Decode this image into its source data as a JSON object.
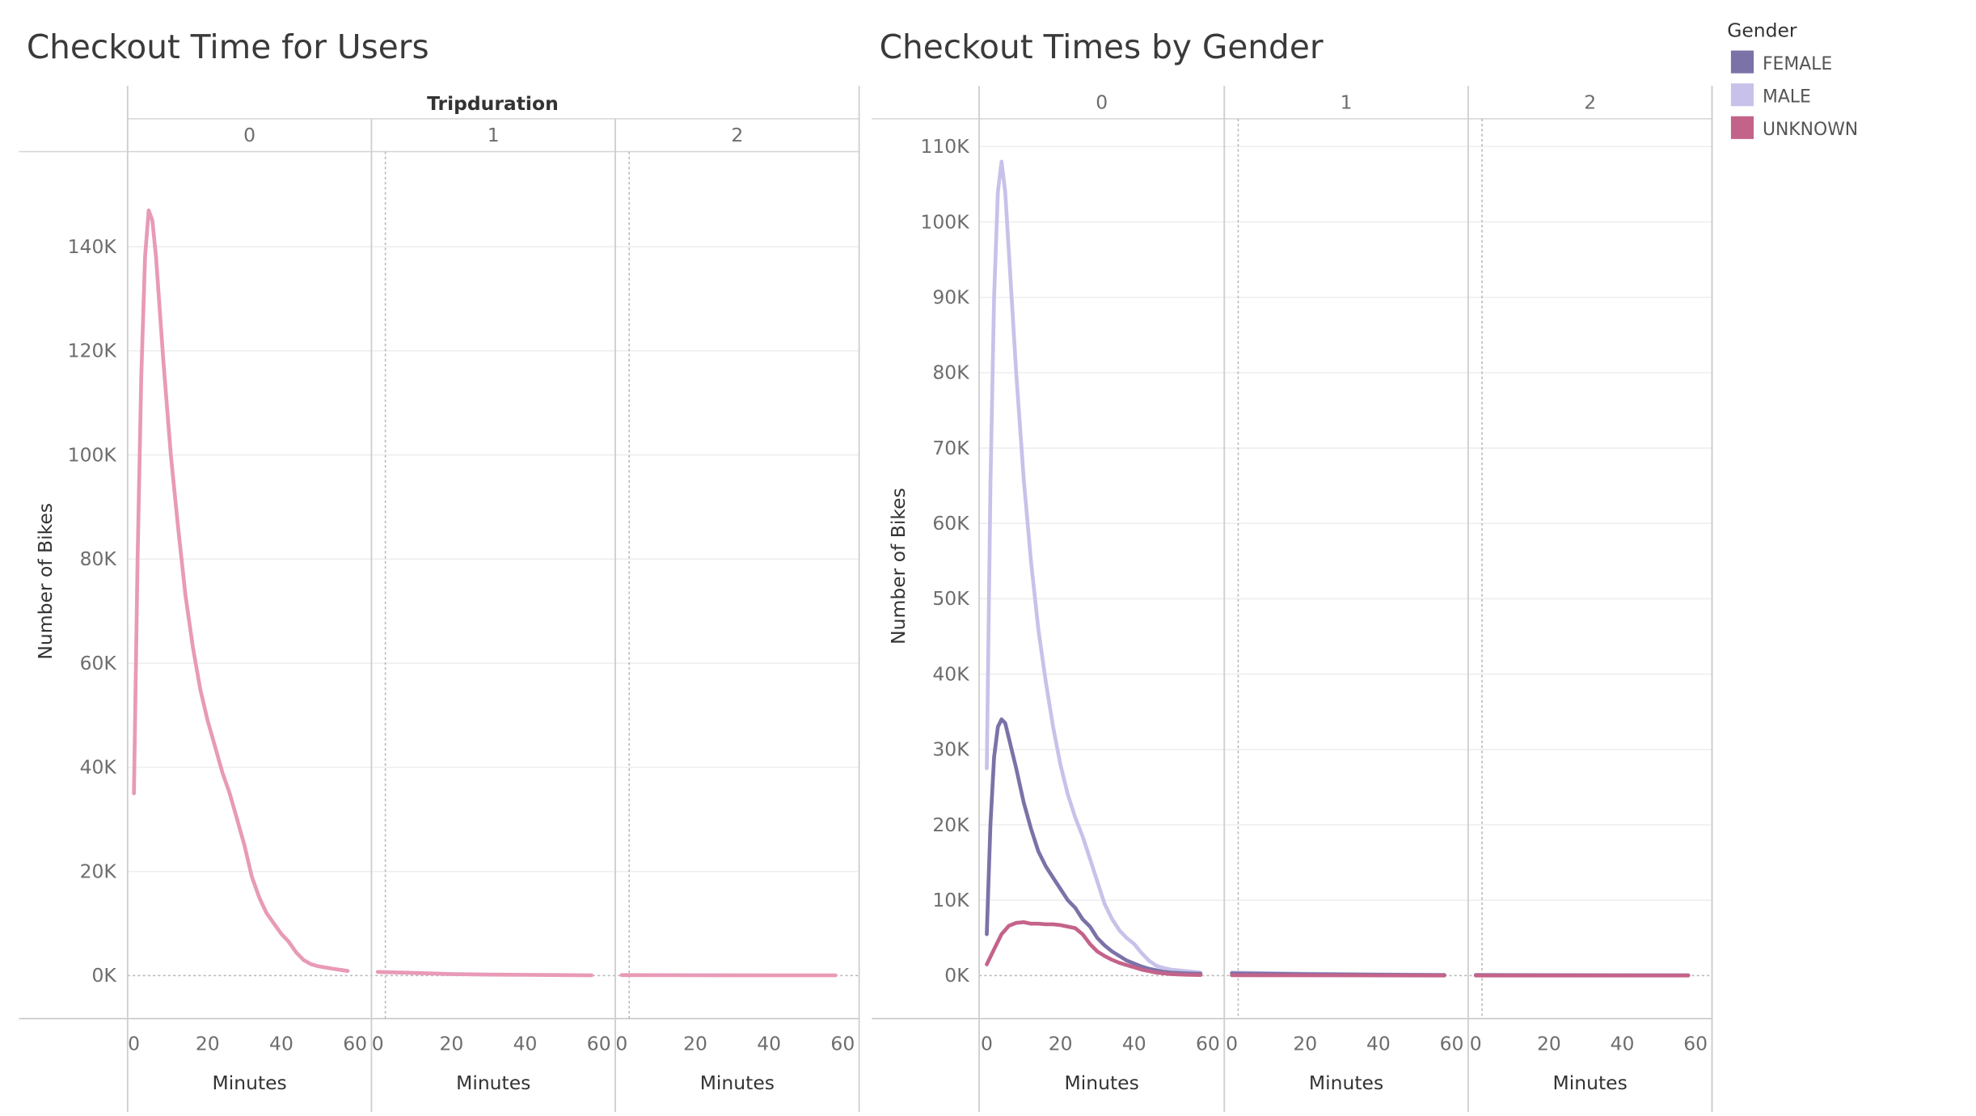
{
  "chart_data": [
    {
      "type": "line",
      "title": "Checkout Time for Users",
      "column_header": "Tripduration",
      "panels": [
        "0",
        "1",
        "2"
      ],
      "xlabel": "Minutes",
      "ylabel": "Number of Bikes",
      "xlim": [
        0,
        60
      ],
      "x_ticks": [
        "0",
        "20",
        "40",
        "60"
      ],
      "ylim": [
        0,
        150000
      ],
      "y_ticks": [
        {
          "value": 0,
          "label": "0K"
        },
        {
          "value": 20000,
          "label": "20K"
        },
        {
          "value": 40000,
          "label": "40K"
        },
        {
          "value": 60000,
          "label": "60K"
        },
        {
          "value": 80000,
          "label": "80K"
        },
        {
          "value": 100000,
          "label": "100K"
        },
        {
          "value": 120000,
          "label": "120K"
        },
        {
          "value": 140000,
          "label": "140K"
        }
      ],
      "grid": true,
      "series": [
        {
          "color": "#e89ab7",
          "panel_values": [
            [
              [
                0,
                35000
              ],
              [
                1,
                80000
              ],
              [
                2,
                115000
              ],
              [
                3,
                138000
              ],
              [
                4,
                147000
              ],
              [
                5,
                145000
              ],
              [
                6,
                138000
              ],
              [
                8,
                118000
              ],
              [
                10,
                100000
              ],
              [
                12,
                86000
              ],
              [
                14,
                73000
              ],
              [
                16,
                63000
              ],
              [
                18,
                55000
              ],
              [
                20,
                49000
              ],
              [
                22,
                44000
              ],
              [
                24,
                39000
              ],
              [
                26,
                35000
              ],
              [
                28,
                30000
              ],
              [
                30,
                25000
              ],
              [
                32,
                19000
              ],
              [
                34,
                15000
              ],
              [
                36,
                12000
              ],
              [
                38,
                10000
              ],
              [
                40,
                8000
              ],
              [
                42,
                6500
              ],
              [
                44,
                4500
              ],
              [
                46,
                3000
              ],
              [
                48,
                2200
              ],
              [
                50,
                1800
              ],
              [
                54,
                1300
              ],
              [
                58,
                900
              ]
            ],
            [
              [
                0,
                700
              ],
              [
                10,
                500
              ],
              [
                20,
                300
              ],
              [
                30,
                200
              ],
              [
                40,
                150
              ],
              [
                50,
                100
              ],
              [
                58,
                60
              ]
            ],
            [
              [
                0,
                100
              ],
              [
                20,
                80
              ],
              [
                40,
                60
              ],
              [
                58,
                40
              ]
            ]
          ]
        }
      ]
    },
    {
      "type": "line",
      "title": "Checkout Times by Gender",
      "panels": [
        "0",
        "1",
        "2"
      ],
      "xlabel": "Minutes",
      "ylabel": "Number of Bikes",
      "xlim": [
        0,
        60
      ],
      "x_ticks": [
        "0",
        "20",
        "40",
        "60"
      ],
      "ylim": [
        0,
        110000
      ],
      "y_ticks": [
        {
          "value": 0,
          "label": "0K"
        },
        {
          "value": 10000,
          "label": "10K"
        },
        {
          "value": 20000,
          "label": "20K"
        },
        {
          "value": 30000,
          "label": "30K"
        },
        {
          "value": 40000,
          "label": "40K"
        },
        {
          "value": 50000,
          "label": "50K"
        },
        {
          "value": 60000,
          "label": "60K"
        },
        {
          "value": 70000,
          "label": "70K"
        },
        {
          "value": 80000,
          "label": "80K"
        },
        {
          "value": 90000,
          "label": "90K"
        },
        {
          "value": 100000,
          "label": "100K"
        },
        {
          "value": 110000,
          "label": "110K"
        }
      ],
      "grid": true,
      "legend": {
        "title": "Gender",
        "position": "top-right",
        "items": [
          {
            "name": "FEMALE",
            "color": "#7b72a8"
          },
          {
            "name": "MALE",
            "color": "#c8c2ea"
          },
          {
            "name": "UNKNOWN",
            "color": "#c4638a"
          }
        ]
      },
      "series": [
        {
          "name": "MALE",
          "color": "#c8c2ea",
          "panel_values": [
            [
              [
                0,
                27500
              ],
              [
                1,
                65000
              ],
              [
                2,
                90000
              ],
              [
                3,
                104000
              ],
              [
                4,
                108000
              ],
              [
                5,
                104000
              ],
              [
                6,
                96000
              ],
              [
                8,
                80000
              ],
              [
                10,
                66000
              ],
              [
                12,
                55000
              ],
              [
                14,
                46000
              ],
              [
                16,
                39000
              ],
              [
                18,
                33000
              ],
              [
                20,
                28000
              ],
              [
                22,
                24000
              ],
              [
                24,
                21000
              ],
              [
                26,
                18500
              ],
              [
                28,
                15500
              ],
              [
                30,
                12500
              ],
              [
                32,
                9500
              ],
              [
                34,
                7500
              ],
              [
                36,
                6000
              ],
              [
                38,
                5000
              ],
              [
                40,
                4200
              ],
              [
                42,
                3000
              ],
              [
                44,
                2000
              ],
              [
                46,
                1300
              ],
              [
                48,
                1000
              ],
              [
                50,
                800
              ],
              [
                54,
                600
              ],
              [
                58,
                400
              ]
            ],
            [
              [
                0,
                400
              ],
              [
                20,
                250
              ],
              [
                40,
                150
              ],
              [
                58,
                80
              ]
            ],
            [
              [
                0,
                80
              ],
              [
                30,
                60
              ],
              [
                58,
                40
              ]
            ]
          ]
        },
        {
          "name": "FEMALE",
          "color": "#7b72a8",
          "panel_values": [
            [
              [
                0,
                5500
              ],
              [
                1,
                20000
              ],
              [
                2,
                29000
              ],
              [
                3,
                33000
              ],
              [
                4,
                34000
              ],
              [
                5,
                33500
              ],
              [
                6,
                31500
              ],
              [
                8,
                27500
              ],
              [
                10,
                23000
              ],
              [
                12,
                19500
              ],
              [
                14,
                16500
              ],
              [
                16,
                14500
              ],
              [
                18,
                13000
              ],
              [
                20,
                11500
              ],
              [
                22,
                10000
              ],
              [
                24,
                9000
              ],
              [
                26,
                7500
              ],
              [
                28,
                6500
              ],
              [
                30,
                5000
              ],
              [
                32,
                4000
              ],
              [
                34,
                3200
              ],
              [
                36,
                2600
              ],
              [
                38,
                2000
              ],
              [
                40,
                1600
              ],
              [
                42,
                1200
              ],
              [
                44,
                900
              ],
              [
                46,
                700
              ],
              [
                48,
                500
              ],
              [
                50,
                400
              ],
              [
                54,
                300
              ],
              [
                58,
                250
              ]
            ],
            [
              [
                0,
                300
              ],
              [
                20,
                180
              ],
              [
                40,
                120
              ],
              [
                58,
                60
              ]
            ],
            [
              [
                0,
                60
              ],
              [
                30,
                40
              ],
              [
                58,
                30
              ]
            ]
          ]
        },
        {
          "name": "UNKNOWN",
          "color": "#c4638a",
          "panel_values": [
            [
              [
                0,
                1500
              ],
              [
                2,
                3500
              ],
              [
                4,
                5500
              ],
              [
                6,
                6600
              ],
              [
                8,
                7000
              ],
              [
                10,
                7100
              ],
              [
                12,
                6900
              ],
              [
                14,
                6900
              ],
              [
                16,
                6800
              ],
              [
                18,
                6800
              ],
              [
                20,
                6700
              ],
              [
                22,
                6500
              ],
              [
                24,
                6300
              ],
              [
                26,
                5500
              ],
              [
                28,
                4200
              ],
              [
                30,
                3200
              ],
              [
                32,
                2600
              ],
              [
                34,
                2100
              ],
              [
                36,
                1700
              ],
              [
                38,
                1400
              ],
              [
                40,
                1100
              ],
              [
                42,
                800
              ],
              [
                44,
                600
              ],
              [
                46,
                400
              ],
              [
                48,
                300
              ],
              [
                50,
                200
              ],
              [
                54,
                120
              ],
              [
                58,
                80
              ]
            ],
            [
              [
                0,
                50
              ],
              [
                30,
                30
              ],
              [
                58,
                20
              ]
            ],
            [
              [
                0,
                20
              ],
              [
                30,
                15
              ],
              [
                58,
                10
              ]
            ]
          ]
        }
      ]
    }
  ]
}
